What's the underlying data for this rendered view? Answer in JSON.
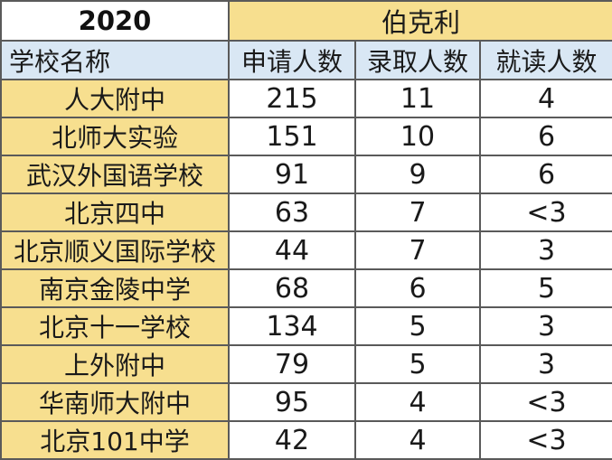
{
  "table": {
    "year": "2020",
    "university": "伯克利",
    "headers": [
      "学校名称",
      "申请人数",
      "录取人数",
      "就读人数"
    ],
    "rows": [
      {
        "school": "人大附中",
        "applied": "215",
        "admitted": "11",
        "enrolled": "4"
      },
      {
        "school": "北师大实验",
        "applied": "151",
        "admitted": "10",
        "enrolled": "6"
      },
      {
        "school": "武汉外国语学校",
        "applied": "91",
        "admitted": "9",
        "enrolled": "6"
      },
      {
        "school": "北京四中",
        "applied": "63",
        "admitted": "7",
        "enrolled": "<3"
      },
      {
        "school": "北京顺义国际学校",
        "applied": "44",
        "admitted": "7",
        "enrolled": "3"
      },
      {
        "school": "南京金陵中学",
        "applied": "68",
        "admitted": "6",
        "enrolled": "5"
      },
      {
        "school": "北京十一学校",
        "applied": "134",
        "admitted": "5",
        "enrolled": "3"
      },
      {
        "school": "上外附中",
        "applied": "79",
        "admitted": "5",
        "enrolled": "3"
      },
      {
        "school": "华南师大附中",
        "applied": "95",
        "admitted": "4",
        "enrolled": "<3"
      },
      {
        "school": "北京101中学",
        "applied": "42",
        "admitted": "4",
        "enrolled": "<3"
      }
    ]
  }
}
